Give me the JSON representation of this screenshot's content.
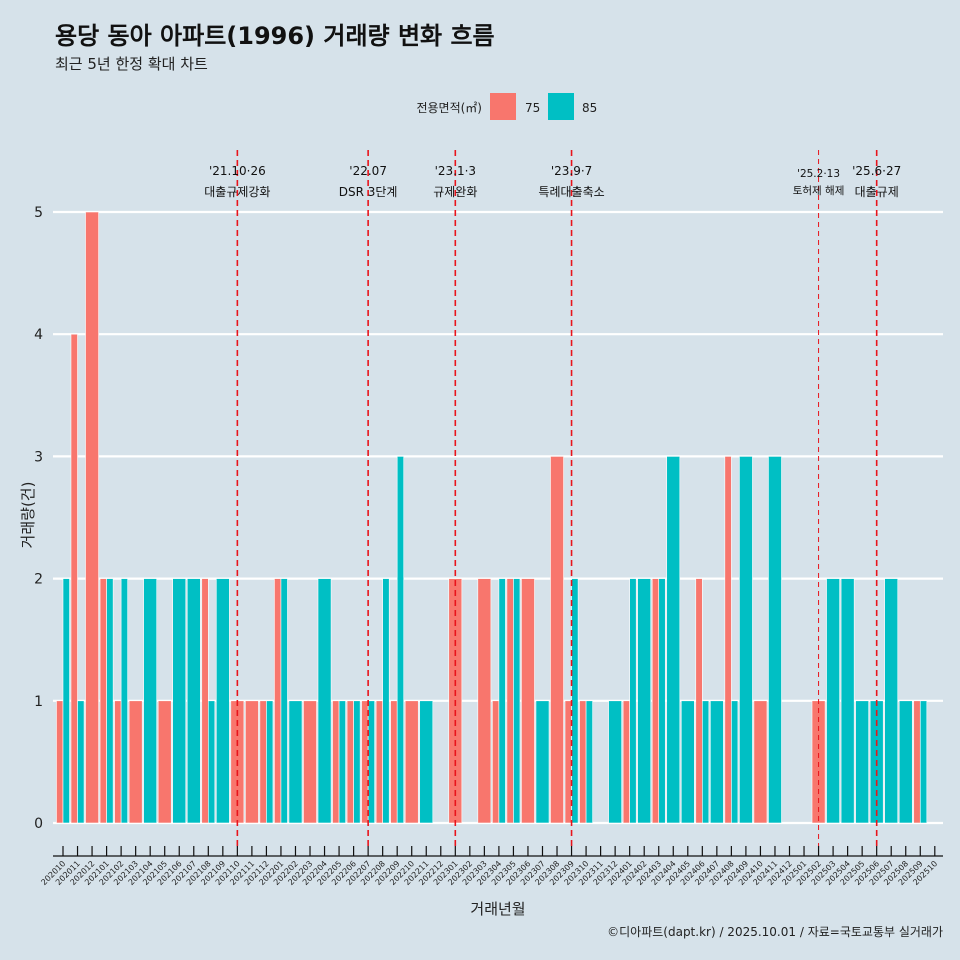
{
  "chart_data": {
    "type": "bar",
    "title": "용당 동아 아파트(1996) 거래량 변화 흐름",
    "subtitle": "최근 5년 한정 확대 차트",
    "xlabel": "거래년월",
    "ylabel": "거래량(건)",
    "ylim": [
      0,
      5
    ],
    "yticks": [
      0,
      1,
      2,
      3,
      4,
      5
    ],
    "grid": "horizontal",
    "legend": {
      "title": "전용면적(㎡)",
      "position": "top"
    },
    "categories": [
      "202010",
      "202011",
      "202012",
      "202101",
      "202102",
      "202103",
      "202104",
      "202105",
      "202106",
      "202107",
      "202108",
      "202109",
      "202110",
      "202111",
      "202112",
      "202201",
      "202202",
      "202203",
      "202204",
      "202205",
      "202206",
      "202207",
      "202208",
      "202209",
      "202210",
      "202211",
      "202212",
      "202301",
      "202302",
      "202303",
      "202304",
      "202305",
      "202306",
      "202307",
      "202308",
      "202309",
      "202310",
      "202311",
      "202312",
      "202401",
      "202402",
      "202403",
      "202404",
      "202405",
      "202406",
      "202407",
      "202408",
      "202409",
      "202410",
      "202411",
      "202412",
      "202501",
      "202502",
      "202503",
      "202504",
      "202505",
      "202506",
      "202507",
      "202508",
      "202509",
      "202510"
    ],
    "series": [
      {
        "name": "75",
        "color": "#F8766D",
        "values": [
          1,
          4,
          5,
          2,
          1,
          1,
          0,
          1,
          0,
          0,
          2,
          0,
          1,
          1,
          1,
          2,
          0,
          1,
          0,
          1,
          1,
          1,
          1,
          1,
          1,
          0,
          0,
          2,
          0,
          2,
          1,
          2,
          2,
          0,
          3,
          1,
          1,
          0,
          0,
          1,
          0,
          2,
          0,
          0,
          2,
          0,
          3,
          0,
          1,
          0,
          0,
          0,
          1,
          0,
          0,
          0,
          0,
          0,
          0,
          1,
          0
        ]
      },
      {
        "name": "85",
        "color": "#00BFC4",
        "values": [
          2,
          1,
          0,
          2,
          2,
          0,
          2,
          0,
          2,
          2,
          1,
          2,
          0,
          0,
          1,
          2,
          1,
          0,
          2,
          1,
          1,
          1,
          2,
          3,
          0,
          1,
          0,
          0,
          0,
          0,
          2,
          2,
          0,
          1,
          0,
          2,
          1,
          0,
          1,
          2,
          2,
          2,
          3,
          1,
          1,
          1,
          1,
          3,
          0,
          3,
          0,
          0,
          0,
          2,
          2,
          1,
          1,
          2,
          1,
          1,
          0
        ]
      }
    ],
    "annotations": [
      {
        "month": "202110",
        "date": "'21.10·26",
        "label": "대출규제강화",
        "type": "major"
      },
      {
        "month": "202207",
        "date": "'22.07",
        "label": "DSR 3단계",
        "type": "major"
      },
      {
        "month": "202301",
        "date": "'23.1·3",
        "label": "규제완화",
        "type": "major"
      },
      {
        "month": "202309",
        "date": "'23.9·7",
        "label": "특례대출축소",
        "type": "major"
      },
      {
        "month": "202502",
        "date": "'25.2·13",
        "label": "토허제 해제",
        "type": "minor"
      },
      {
        "month": "202506",
        "date": "'25.6·27",
        "label": "대출규제",
        "type": "major"
      }
    ],
    "annotation_color": "#e8141c",
    "caption": "©디아파트(dapt.kr) / 2025.10.01 / 자료=국토교통부 실거래가"
  }
}
